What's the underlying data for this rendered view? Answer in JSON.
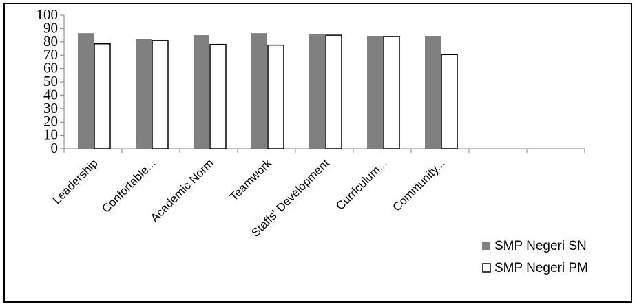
{
  "chart_data": {
    "type": "bar",
    "categories": [
      "Leadership",
      "Confortable...",
      "Academic Norm",
      "Teamwork",
      "Staffs' Development",
      "Curriculum...",
      "Community...",
      "",
      ""
    ],
    "series": [
      {
        "name": "SMP Negeri SN",
        "values": [
          86.5,
          82,
          85,
          86.5,
          86,
          84,
          84.5,
          null,
          null
        ],
        "color": "#808080"
      },
      {
        "name": "SMP Negeri PM",
        "values": [
          78.5,
          81,
          78,
          77.5,
          85,
          84,
          70.5,
          null,
          null
        ],
        "color": "#ffffff"
      }
    ],
    "ylim": [
      0,
      100
    ],
    "yticks": [
      "0",
      "10",
      "20",
      "30",
      "40",
      "50",
      "60",
      "70",
      "80",
      "90",
      "100"
    ],
    "legend_position": "bottom-right",
    "grid": false
  }
}
